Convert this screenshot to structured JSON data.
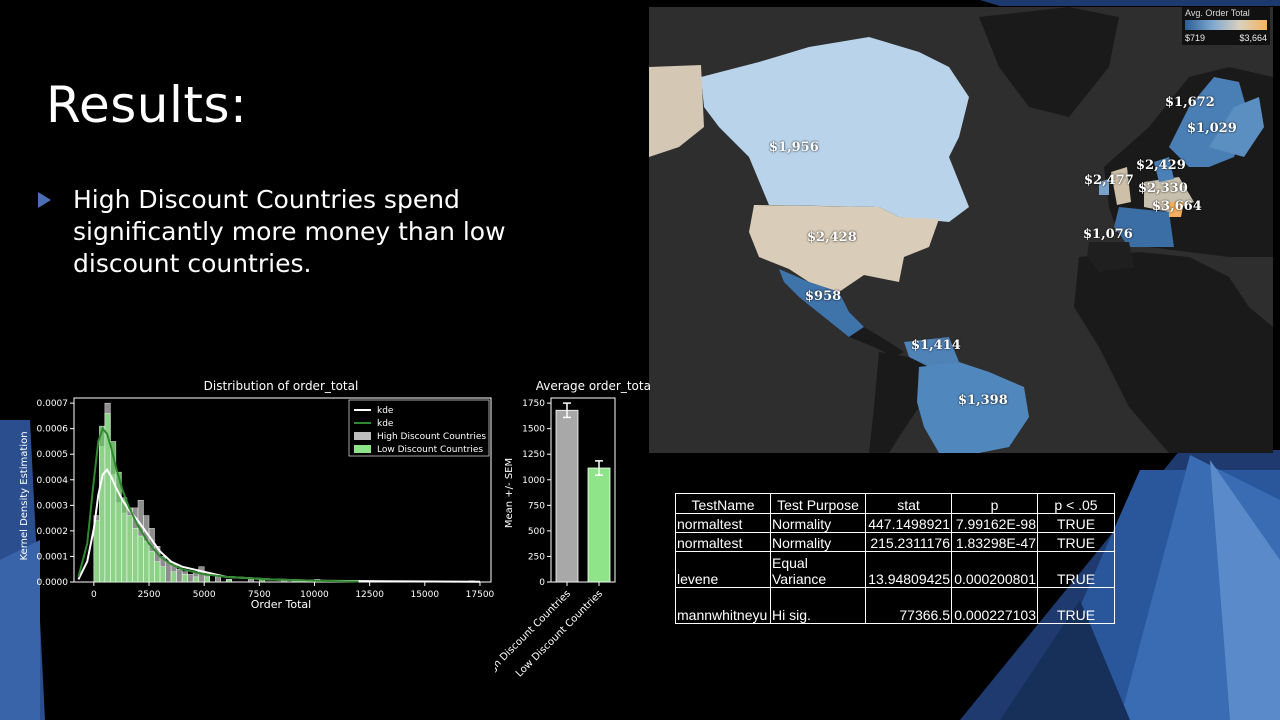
{
  "slide": {
    "title": "Results:",
    "bullet": "High Discount Countries spend significantly more money than low discount countries."
  },
  "map": {
    "legend_title": "Avg. Order Total",
    "legend_min": "$719",
    "legend_max": "$3,664",
    "labels": [
      {
        "text": "$1,956"
      },
      {
        "text": "$2,428"
      },
      {
        "text": "$958"
      },
      {
        "text": "$1,414"
      },
      {
        "text": "$1,398"
      },
      {
        "text": "$1,672"
      },
      {
        "text": "$1,029"
      },
      {
        "text": "$2,429"
      },
      {
        "text": "$2,477"
      },
      {
        "text": "$2,330"
      },
      {
        "text": "$3,664"
      },
      {
        "text": "$1,076"
      }
    ]
  },
  "table": {
    "headers": [
      "TestName",
      "Test Purpose",
      "stat",
      "p",
      "p < .05"
    ],
    "rows": [
      [
        "normaltest",
        "Normality",
        "447.1498921",
        "7.99162E-98",
        "TRUE"
      ],
      [
        "normaltest",
        "Normality",
        "215.2311176",
        "1.83298E-47",
        "TRUE"
      ],
      [
        "levene",
        "Equal Variance",
        "13.94809425",
        "0.000200801",
        "TRUE"
      ],
      [
        "mannwhitneyu",
        "Hi sig.",
        "77366.5",
        "0.000227103",
        "TRUE"
      ]
    ]
  },
  "chart_data": [
    {
      "type": "bar",
      "title": "Distribution of order_total",
      "xlabel": "Order Total",
      "ylabel": "Kernel Density Estimation",
      "x_ticks": [
        0,
        2500,
        5000,
        7500,
        10000,
        12500,
        15000,
        17500
      ],
      "y_ticks": [
        "0.0000",
        "0.0001",
        "0.0002",
        "0.0003",
        "0.0004",
        "0.0005",
        "0.0006",
        "0.0007"
      ],
      "xlim": [
        -900,
        18000
      ],
      "ylim": [
        0,
        0.00072
      ],
      "legend": [
        "kde",
        "kde",
        "High Discount Countries",
        "Low Discount Countries"
      ],
      "legend_position": "top-right",
      "bin_width": 250,
      "series": [
        {
          "name": "High Discount Countries",
          "color": "#bdbdbd",
          "bin_starts": [
            0,
            250,
            500,
            750,
            1000,
            1250,
            1500,
            1750,
            2000,
            2250,
            2500,
            2750,
            3000,
            3250,
            3500,
            3750,
            4000,
            4250,
            4500,
            4750,
            5000,
            5500,
            6000,
            7000,
            8500,
            10000,
            12000,
            15000,
            17000
          ],
          "values": [
            0.00026,
            0.00053,
            0.0007,
            0.00042,
            0.00031,
            0.00027,
            0.00029,
            0.00029,
            0.00032,
            0.00026,
            0.00021,
            0.00014,
            0.0001,
            8e-05,
            7e-05,
            5e-05,
            4e-05,
            3e-05,
            4e-05,
            6e-05,
            3e-05,
            2e-05,
            1e-05,
            1e-05,
            1e-05,
            1e-05,
            5e-06,
            5e-06,
            5e-06
          ],
          "kde_color": "#ffffff",
          "kde_x": [
            -700,
            -300,
            0,
            200,
            400,
            600,
            800,
            1000,
            1300,
            1600,
            2000,
            2500,
            3000,
            3500,
            4000,
            5000,
            6000,
            8000,
            10000,
            13000,
            17500
          ],
          "kde_y": [
            1e-05,
            8e-05,
            0.00021,
            0.00034,
            0.00042,
            0.00044,
            0.00041,
            0.00037,
            0.00032,
            0.00028,
            0.00024,
            0.00018,
            0.00012,
            8e-05,
            6e-05,
            4e-05,
            2e-05,
            1e-05,
            5e-06,
            3e-06,
            1e-06
          ]
        },
        {
          "name": "Low Discount Countries",
          "color": "#8fe48a",
          "bin_starts": [
            0,
            250,
            500,
            750,
            1000,
            1250,
            1500,
            1750,
            2000,
            2250,
            2500,
            2750,
            3000,
            3500,
            4000,
            4500,
            5000,
            6000,
            7500,
            9000,
            10500
          ],
          "values": [
            0.00024,
            0.00061,
            0.00066,
            0.00055,
            0.00043,
            0.00033,
            0.00026,
            0.00021,
            0.00018,
            0.00016,
            0.00012,
            8e-05,
            6e-05,
            4e-05,
            3e-05,
            2e-05,
            2e-05,
            1e-05,
            1e-05,
            8e-06,
            5e-06
          ],
          "kde_color": "#2f8a2f",
          "kde_x": [
            -700,
            -300,
            0,
            200,
            400,
            600,
            800,
            1000,
            1300,
            1600,
            2000,
            2500,
            3000,
            3500,
            4000,
            5000,
            6000,
            8000,
            10000,
            12000
          ],
          "kde_y": [
            2e-05,
            0.00015,
            0.0004,
            0.00055,
            0.0006,
            0.00058,
            0.00052,
            0.00045,
            0.00036,
            0.00029,
            0.00022,
            0.00015,
            0.0001,
            7e-05,
            5e-05,
            3e-05,
            2e-05,
            1e-05,
            5e-06,
            2e-06
          ]
        }
      ]
    },
    {
      "type": "bar",
      "title": "Average order_total",
      "xlabel": "",
      "ylabel": "Mean +/- SEM",
      "categories": [
        "High Discount Countries",
        "Low Discount Countries"
      ],
      "values": [
        1680,
        1115
      ],
      "errors": [
        70,
        70
      ],
      "colors": [
        "#a8a8a8",
        "#8fe48a"
      ],
      "y_ticks": [
        0,
        250,
        500,
        750,
        1000,
        1250,
        1500,
        1750
      ],
      "ylim": [
        0,
        1800
      ]
    }
  ]
}
